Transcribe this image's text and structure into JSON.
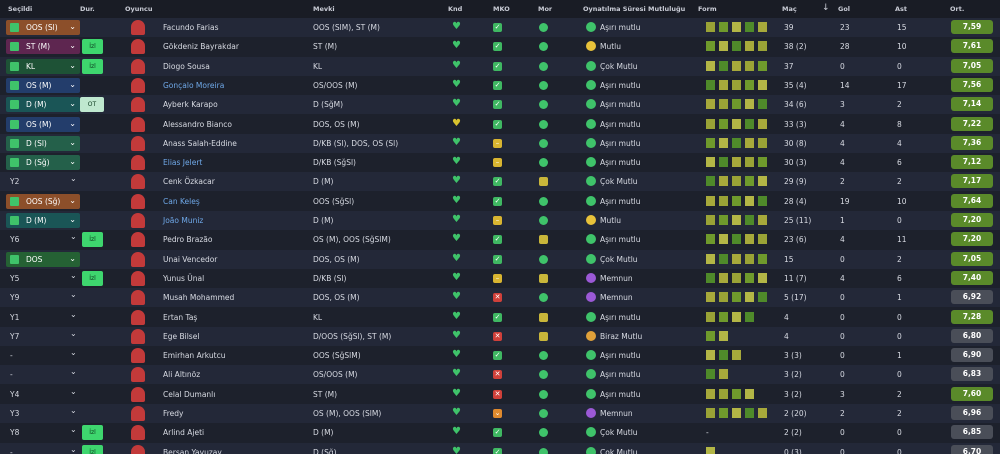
{
  "header": {
    "columns": [
      "Seçildi",
      "Dur.",
      "Oyuncu",
      "Mevki",
      "Knd",
      "MKO",
      "Mor",
      "Oynatılma Süresi Mutluluğu",
      "Form",
      "Maç",
      "Gol",
      "Ast",
      "Ort."
    ]
  },
  "table": {
    "rows": [
      {
        "selected": "OOS (Sl)",
        "name": "Facundo Farias",
        "position": "OOS (SlM), ST (M)",
        "happiness": "Aşırı mutlu",
        "apps": "39",
        "goals": "23",
        "assists": "15",
        "rating": "7,59"
      },
      {
        "selected": "ST (M)",
        "status": "İzl",
        "name": "Gökdeniz Bayrakdar",
        "position": "ST (M)",
        "happiness": "Mutlu",
        "apps": "38 (2)",
        "goals": "28",
        "assists": "10",
        "rating": "7,61"
      },
      {
        "selected": "KL",
        "status": "İzl",
        "name": "Diogo Sousa",
        "position": "KL",
        "happiness": "Çok Mutlu",
        "apps": "37",
        "goals": "0",
        "assists": "0",
        "rating": "7,05"
      },
      {
        "selected": "OS (M)",
        "name": "Gonçalo Moreira",
        "position": "OS/OOS (M)",
        "happiness": "Aşırı mutlu",
        "apps": "35 (4)",
        "goals": "14",
        "assists": "17",
        "rating": "7,56"
      },
      {
        "selected": "D (M)",
        "status": "OT",
        "name": "Ayberk Karapo",
        "position": "D (SğM)",
        "happiness": "Aşırı mutlu",
        "apps": "34 (6)",
        "goals": "3",
        "assists": "2",
        "rating": "7,14"
      },
      {
        "selected": "OS (M)",
        "name": "Alessandro Bianco",
        "position": "DOS, OS (M)",
        "happiness": "Aşırı mutlu",
        "apps": "33 (3)",
        "goals": "4",
        "assists": "8",
        "rating": "7,22"
      },
      {
        "selected": "D (Sl)",
        "name": "Anass Salah-Eddine",
        "position": "D/KB (Sl), DOS, OS (Sl)",
        "happiness": "Aşırı mutlu",
        "apps": "30 (8)",
        "goals": "4",
        "assists": "4",
        "rating": "7,36"
      },
      {
        "selected": "D (Sğ)",
        "name": "Elias Jelert",
        "position": "D/KB (SğSl)",
        "happiness": "Aşırı mutlu",
        "apps": "30 (3)",
        "goals": "4",
        "assists": "6",
        "rating": "7,12"
      },
      {
        "selected": "Y2",
        "name": "Cenk Özkacar",
        "position": "D (M)",
        "happiness": "Çok Mutlu",
        "apps": "29 (9)",
        "goals": "2",
        "assists": "2",
        "rating": "7,17"
      },
      {
        "selected": "OOS (Sğ)",
        "name": "Can Keleş",
        "position": "OOS (SğSl)",
        "happiness": "Aşırı mutlu",
        "apps": "28 (4)",
        "goals": "19",
        "assists": "10",
        "rating": "7,64"
      },
      {
        "selected": "D (M)",
        "name": "João Muniz",
        "position": "D (M)",
        "happiness": "Mutlu",
        "apps": "25 (11)",
        "goals": "1",
        "assists": "0",
        "rating": "7,20"
      },
      {
        "selected": "Y6",
        "status": "İzl",
        "name": "Pedro Brazão",
        "position": "OS (M), OOS (SğSlM)",
        "happiness": "Aşırı mutlu",
        "apps": "23 (6)",
        "goals": "4",
        "assists": "11",
        "rating": "7,20"
      },
      {
        "selected": "DOS",
        "name": "Unai Vencedor",
        "position": "DOS, OS (M)",
        "happiness": "Çok Mutlu",
        "apps": "15",
        "goals": "0",
        "assists": "2",
        "rating": "7,05"
      },
      {
        "selected": "Y5",
        "status": "İzl",
        "name": "Yunus Ünal",
        "position": "D/KB (Sl)",
        "happiness": "Memnun",
        "apps": "11 (7)",
        "goals": "4",
        "assists": "6",
        "rating": "7,40"
      },
      {
        "selected": "Y9",
        "name": "Musah Mohammed",
        "position": "DOS, OS (M)",
        "happiness": "Memnun",
        "apps": "5 (17)",
        "goals": "0",
        "assists": "1",
        "rating": "6,92"
      },
      {
        "selected": "Y1",
        "name": "Ertan Taş",
        "position": "KL",
        "happiness": "Aşırı mutlu",
        "apps": "4",
        "goals": "0",
        "assists": "0",
        "rating": "7,28"
      },
      {
        "selected": "Y7",
        "name": "Ege Bilsel",
        "position": "D/OOS (SğSl), ST (M)",
        "happiness": "Biraz Mutlu",
        "apps": "4",
        "goals": "0",
        "assists": "0",
        "rating": "6,80"
      },
      {
        "selected": "-",
        "name": "Emirhan Arkutcu",
        "position": "OOS (SğSlM)",
        "happiness": "Aşırı mutlu",
        "apps": "3 (3)",
        "goals": "0",
        "assists": "1",
        "rating": "6,90"
      },
      {
        "selected": "-",
        "name": "Ali Altınöz",
        "position": "OS/OOS (M)",
        "happiness": "Aşırı mutlu",
        "apps": "3 (2)",
        "goals": "0",
        "assists": "0",
        "rating": "6,83"
      },
      {
        "selected": "Y4",
        "name": "Celal Dumanlı",
        "position": "ST (M)",
        "happiness": "Aşırı mutlu",
        "apps": "3 (2)",
        "goals": "3",
        "assists": "2",
        "rating": "7,60"
      },
      {
        "selected": "Y3",
        "name": "Fredy",
        "position": "OS (M), OOS (SlM)",
        "happiness": "Memnun",
        "apps": "2 (20)",
        "goals": "2",
        "assists": "2",
        "rating": "6,96"
      },
      {
        "selected": "Y8",
        "status": "İzl",
        "name": "Arlind Ajeti",
        "position": "D (M)",
        "happiness": "Çok Mutlu",
        "form": "-",
        "apps": "2 (2)",
        "goals": "0",
        "assists": "0",
        "rating": "6,85"
      },
      {
        "selected": "-",
        "status": "İzl",
        "name": "Berşan Yavuzay",
        "position": "D (Sğ)",
        "happiness": "Çok Mutlu",
        "apps": "0 (3)",
        "goals": "0",
        "assists": "0",
        "rating": "6,70"
      }
    ]
  }
}
